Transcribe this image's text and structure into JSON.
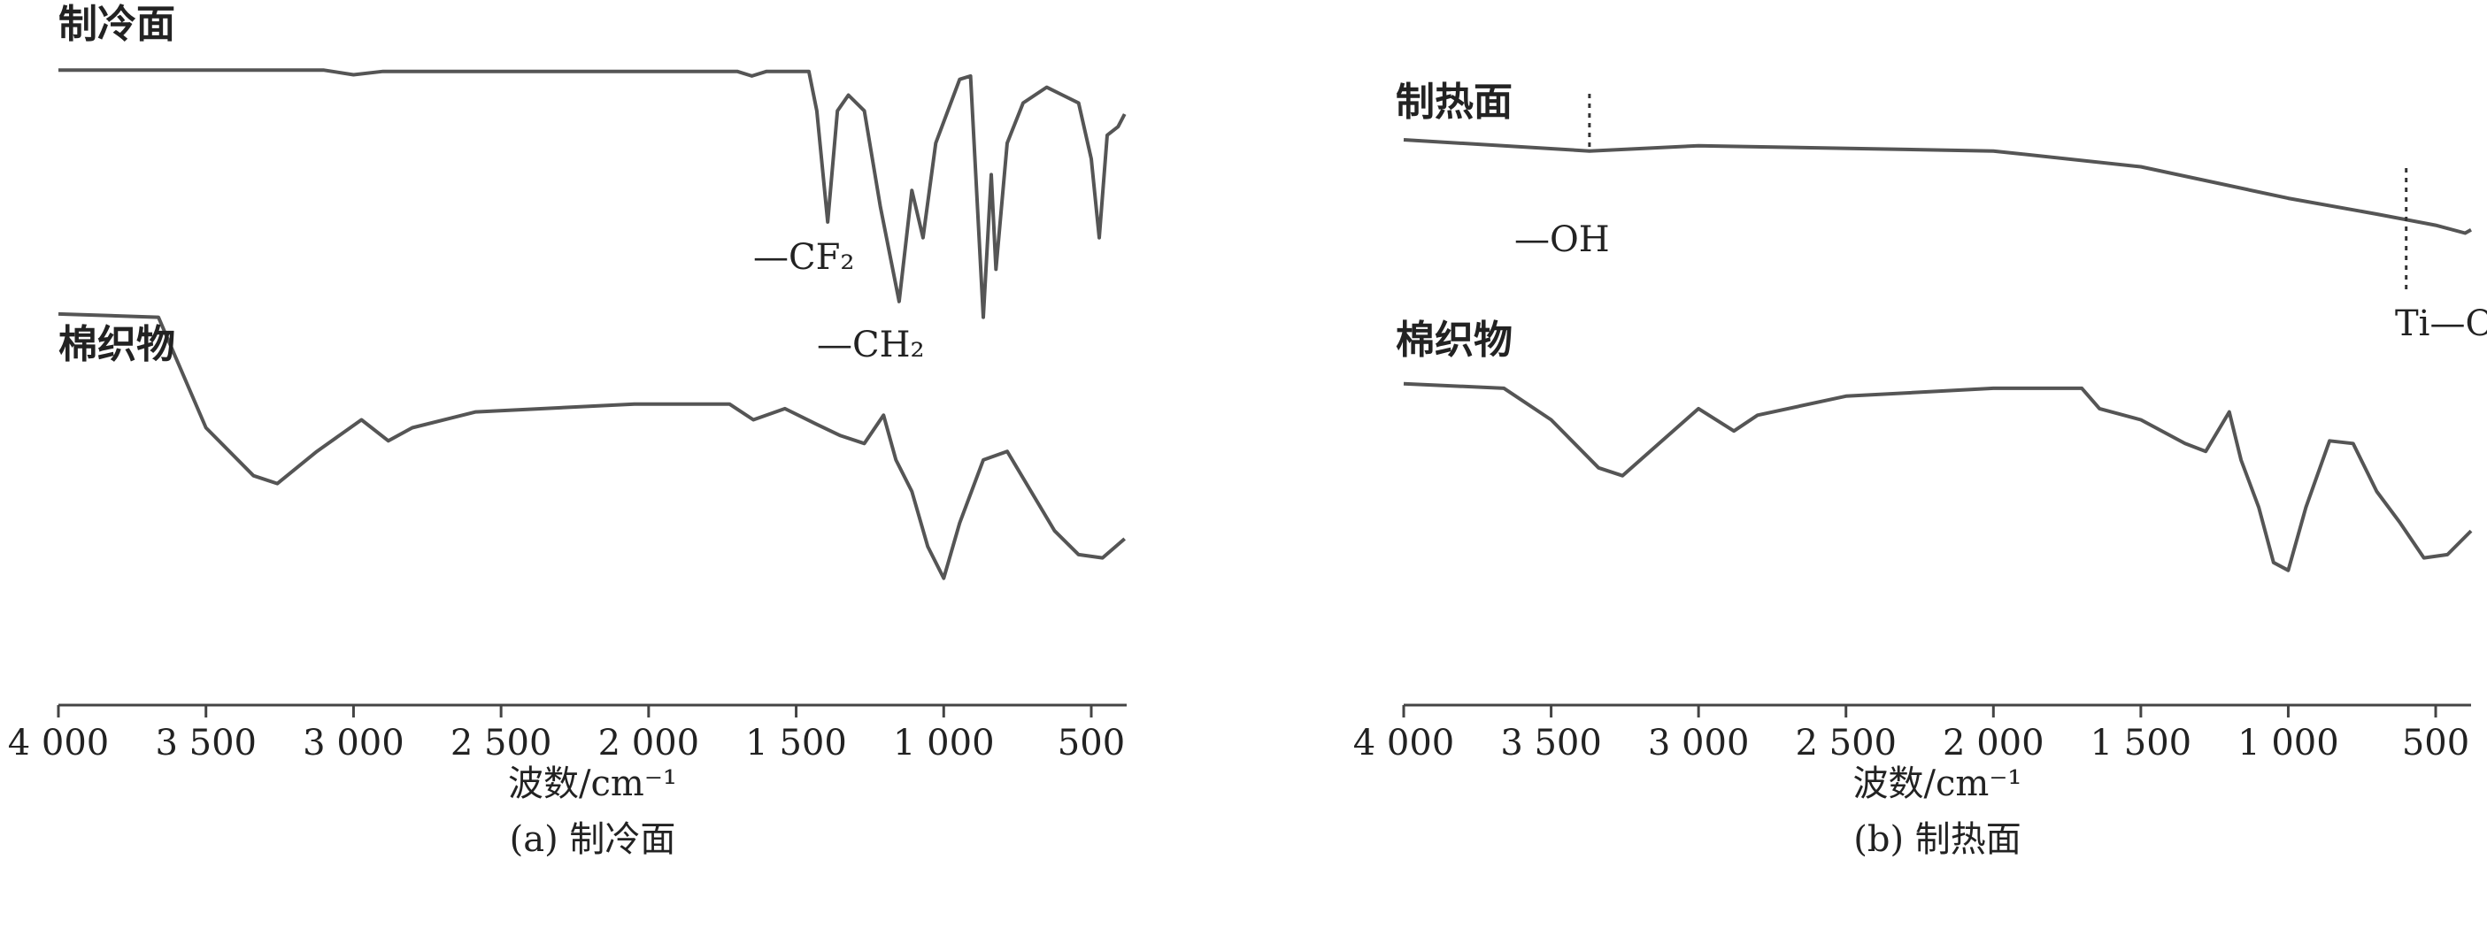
{
  "chart_data": [
    {
      "type": "line",
      "caption": "(a) 制冷面",
      "xlabel": "波数/cm⁻¹",
      "xlim": [
        4000,
        380
      ],
      "ylim": [
        0,
        100
      ],
      "xticks": [
        {
          "value": 4000,
          "label": "4 000"
        },
        {
          "value": 3500,
          "label": "3 500"
        },
        {
          "value": 3000,
          "label": "3 000"
        },
        {
          "value": 2500,
          "label": "2 500"
        },
        {
          "value": 2000,
          "label": "2 000"
        },
        {
          "value": 1500,
          "label": "1 500"
        },
        {
          "value": 1000,
          "label": "1 000"
        },
        500
      ],
      "series": [
        {
          "name": "制冷面",
          "color": "#555555",
          "x": [
            4000,
            3100,
            3000,
            2900,
            1700,
            1650,
            1600,
            1457,
            1430,
            1393,
            1360,
            1323,
            1269,
            1215,
            1151,
            1108,
            1070,
            1027,
            946,
            909,
            866,
            839,
            823,
            785,
            731,
            651,
            597,
            543,
            500,
            473,
            446,
            409,
            387
          ],
          "values": [
            96.6,
            96.6,
            95.9,
            96.4,
            96.4,
            95.7,
            96.4,
            96.4,
            90.4,
            73.5,
            90.4,
            92.8,
            90.4,
            75.9,
            61.4,
            78.3,
            71.1,
            85.5,
            95.2,
            95.7,
            59.0,
            80.7,
            66.3,
            85.5,
            91.6,
            94.0,
            92.8,
            91.6,
            83.1,
            71.1,
            86.7,
            88.0,
            89.9
          ]
        },
        {
          "name": "棉织物",
          "color": "#555555",
          "x": [
            4000,
            3661,
            3500,
            3339,
            3258,
            3124,
            2973,
            2882,
            2801,
            2586,
            2048,
            1726,
            1645,
            1538,
            1430,
            1350,
            1269,
            1204,
            1162,
            1108,
            1054,
            1000,
            946,
            866,
            785,
            704,
            624,
            543,
            462,
            387
          ],
          "values": [
            59.5,
            59.0,
            42.2,
            34.9,
            33.7,
            38.6,
            43.4,
            40.2,
            42.2,
            44.6,
            45.8,
            45.8,
            43.4,
            45.1,
            42.7,
            41.0,
            39.8,
            44.1,
            37.3,
            32.5,
            24.1,
            19.3,
            27.7,
            37.3,
            38.6,
            32.5,
            26.5,
            22.9,
            22.4,
            25.3
          ]
        }
      ],
      "annotations": [
        {
          "text": "—CF₂"
        },
        {
          "text": "—CH₂"
        }
      ]
    },
    {
      "type": "line",
      "caption": "(b) 制热面",
      "xlabel": "波数/cm⁻¹",
      "xlim": [
        4000,
        380
      ],
      "ylim": [
        0,
        100
      ],
      "xticks": [
        {
          "value": 4000,
          "label": "4 000"
        },
        {
          "value": 3500,
          "label": "3 500"
        },
        {
          "value": 3000,
          "label": "3 000"
        },
        {
          "value": 2500,
          "label": "2 500"
        },
        {
          "value": 2000,
          "label": "2 000"
        },
        {
          "value": 1500,
          "label": "1 500"
        },
        {
          "value": 1000,
          "label": "1 000"
        },
        500
      ],
      "series": [
        {
          "name": "制热面",
          "color": "#555555",
          "x": [
            4000,
            3370,
            3000,
            2000,
            1500,
            1000,
            700,
            500,
            400,
            380
          ],
          "values": [
            86.0,
            84.3,
            85.1,
            84.3,
            81.9,
            77.1,
            74.7,
            73.0,
            71.8,
            72.3
          ]
        },
        {
          "name": "棉织物",
          "color": "#555555",
          "x": [
            4000,
            3660,
            3500,
            3339,
            3258,
            3000,
            2880,
            2800,
            2500,
            2000,
            1700,
            1640,
            1500,
            1350,
            1280,
            1200,
            1160,
            1100,
            1050,
            1000,
            940,
            860,
            780,
            700,
            620,
            540,
            460,
            380
          ],
          "values": [
            48.9,
            48.2,
            43.4,
            36.1,
            34.9,
            45.1,
            41.7,
            44.1,
            47.0,
            48.2,
            48.2,
            45.1,
            43.4,
            39.8,
            38.6,
            44.6,
            37.3,
            30.1,
            21.7,
            20.5,
            30.1,
            40.2,
            39.8,
            32.5,
            27.7,
            22.4,
            22.9,
            26.5
          ]
        }
      ],
      "annotations": [
        {
          "text": "—OH",
          "x": 3370
        },
        {
          "text": "Ti—O",
          "x": 600
        }
      ]
    }
  ]
}
